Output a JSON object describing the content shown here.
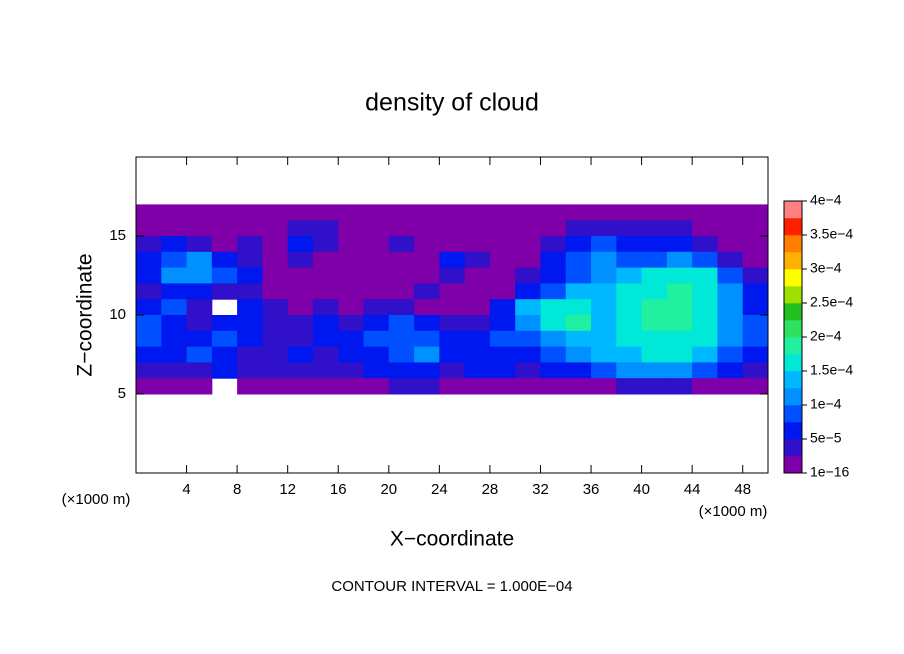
{
  "chart_data": {
    "type": "contour",
    "title": "density of cloud",
    "x_label": "X−coordinate",
    "y_label": "Z−coordinate",
    "x_unit": "(×1000 m)",
    "y_unit": "(×1000 m)",
    "footnote": "CONTOUR INTERVAL = 1.000E−04",
    "xlim": [
      0,
      50
    ],
    "ylim": [
      0,
      20
    ],
    "xticks": [
      4,
      8,
      12,
      16,
      20,
      24,
      28,
      32,
      36,
      40,
      44,
      48
    ],
    "yticks": [
      5,
      10,
      15
    ],
    "x": [
      1,
      3,
      5,
      7,
      9,
      11,
      13,
      15,
      17,
      19,
      21,
      23,
      25,
      27,
      29,
      31,
      33,
      35,
      37,
      39,
      41,
      43,
      45,
      47,
      49
    ],
    "z": [
      16.5,
      15.5,
      14.5,
      13.5,
      12.5,
      11.5,
      10.5,
      9.5,
      8.5,
      7.5,
      6.5,
      5.5
    ],
    "values": [
      [
        1e-05,
        1e-05,
        1e-05,
        1e-05,
        1e-05,
        1e-05,
        1e-05,
        1e-05,
        1e-05,
        1e-05,
        1e-05,
        1e-05,
        1e-05,
        1e-05,
        1e-05,
        1e-05,
        1e-05,
        1e-05,
        1e-05,
        1e-05,
        1e-05,
        1e-05,
        1e-05,
        1e-05,
        1e-05
      ],
      [
        1e-05,
        1e-05,
        1e-05,
        1e-05,
        1e-05,
        1e-05,
        3e-05,
        3e-05,
        1e-05,
        1e-05,
        1e-05,
        1e-05,
        1e-05,
        1e-05,
        1e-05,
        1e-05,
        1e-05,
        3e-05,
        3e-05,
        3e-05,
        3e-05,
        3e-05,
        1e-05,
        1e-05,
        1e-05
      ],
      [
        3e-05,
        6e-05,
        3e-05,
        1e-05,
        3e-05,
        1e-05,
        6e-05,
        3e-05,
        1e-05,
        1e-05,
        3e-05,
        1e-05,
        1e-05,
        1e-05,
        1e-05,
        1e-05,
        3e-05,
        6e-05,
        8e-05,
        6e-05,
        6e-05,
        6e-05,
        3e-05,
        1e-05,
        1e-05
      ],
      [
        6e-05,
        8e-05,
        0.00011,
        6e-05,
        3e-05,
        1e-05,
        3e-05,
        1e-05,
        1e-05,
        1e-05,
        1e-05,
        1e-05,
        6e-05,
        3e-05,
        1e-05,
        1e-05,
        6e-05,
        8e-05,
        0.00011,
        8e-05,
        8e-05,
        0.00011,
        8e-05,
        3e-05,
        1e-05
      ],
      [
        6e-05,
        0.00011,
        0.00011,
        8e-05,
        6e-05,
        1e-05,
        1e-05,
        1e-05,
        1e-05,
        1e-05,
        1e-05,
        1e-05,
        3e-05,
        1e-05,
        1e-05,
        3e-05,
        6e-05,
        8e-05,
        0.00011,
        0.00013,
        0.00016,
        0.00016,
        0.00016,
        8e-05,
        3e-05
      ],
      [
        3e-05,
        6e-05,
        6e-05,
        3e-05,
        3e-05,
        1e-05,
        1e-05,
        1e-05,
        1e-05,
        1e-05,
        1e-05,
        3e-05,
        1e-05,
        1e-05,
        1e-05,
        6e-05,
        8e-05,
        0.00013,
        0.00013,
        0.00016,
        0.00016,
        0.00018,
        0.00016,
        0.00011,
        6e-05
      ],
      [
        6e-05,
        8e-05,
        3e-05,
        null,
        6e-05,
        3e-05,
        1e-05,
        3e-05,
        1e-05,
        3e-05,
        3e-05,
        1e-05,
        1e-05,
        1e-05,
        6e-05,
        0.00013,
        0.00016,
        0.00016,
        0.00013,
        0.00016,
        0.00018,
        0.00018,
        0.00016,
        0.00011,
        6e-05
      ],
      [
        8e-05,
        6e-05,
        3e-05,
        6e-05,
        6e-05,
        3e-05,
        3e-05,
        6e-05,
        3e-05,
        6e-05,
        8e-05,
        6e-05,
        3e-05,
        3e-05,
        6e-05,
        0.00011,
        0.00016,
        0.00018,
        0.00013,
        0.00016,
        0.00018,
        0.00018,
        0.00016,
        0.00011,
        8e-05
      ],
      [
        8e-05,
        6e-05,
        6e-05,
        8e-05,
        6e-05,
        3e-05,
        3e-05,
        6e-05,
        6e-05,
        8e-05,
        8e-05,
        8e-05,
        6e-05,
        6e-05,
        8e-05,
        8e-05,
        0.00011,
        0.00013,
        0.00013,
        0.00016,
        0.00016,
        0.00016,
        0.00016,
        0.00011,
        8e-05
      ],
      [
        6e-05,
        6e-05,
        8e-05,
        6e-05,
        3e-05,
        3e-05,
        6e-05,
        3e-05,
        6e-05,
        6e-05,
        8e-05,
        0.00011,
        6e-05,
        6e-05,
        6e-05,
        6e-05,
        8e-05,
        0.00011,
        0.00013,
        0.00013,
        0.00016,
        0.00016,
        0.00013,
        8e-05,
        6e-05
      ],
      [
        3e-05,
        3e-05,
        3e-05,
        6e-05,
        3e-05,
        3e-05,
        3e-05,
        3e-05,
        3e-05,
        6e-05,
        6e-05,
        6e-05,
        3e-05,
        6e-05,
        6e-05,
        3e-05,
        6e-05,
        6e-05,
        8e-05,
        0.00011,
        0.00011,
        0.00011,
        8e-05,
        6e-05,
        3e-05
      ],
      [
        1e-05,
        1e-05,
        1e-05,
        null,
        1e-05,
        1e-05,
        1e-05,
        1e-05,
        1e-05,
        1e-05,
        3e-05,
        3e-05,
        1e-05,
        1e-05,
        1e-05,
        1e-05,
        1e-05,
        1e-05,
        1e-05,
        3e-05,
        3e-05,
        3e-05,
        1e-05,
        1e-05,
        1e-05
      ]
    ],
    "levels": [
      1e-16,
      2.5e-05,
      5e-05,
      7.5e-05,
      0.0001,
      0.000125,
      0.00015,
      0.000175,
      0.0002,
      0.000225,
      0.00025,
      0.000275,
      0.0003,
      0.000325,
      0.00035,
      0.000375,
      0.0004
    ],
    "colors": [
      "#7f00a8",
      "#3010c8",
      "#0018f0",
      "#0050ff",
      "#0090ff",
      "#00b8ff",
      "#00e8d8",
      "#20f0a0",
      "#30e060",
      "#20c020",
      "#a0e000",
      "#ffff00",
      "#ffb000",
      "#ff8000",
      "#ff2000",
      "#ff8080"
    ],
    "colorbar_ticks": [
      {
        "value": 1e-16,
        "label": "1e−16"
      },
      {
        "value": 5e-05,
        "label": "5e−5"
      },
      {
        "value": 0.0001,
        "label": "1e−4"
      },
      {
        "value": 0.00015,
        "label": "1.5e−4"
      },
      {
        "value": 0.0002,
        "label": "2e−4"
      },
      {
        "value": 0.00025,
        "label": "2.5e−4"
      },
      {
        "value": 0.0003,
        "label": "3e−4"
      },
      {
        "value": 0.00035,
        "label": "3.5e−4"
      },
      {
        "value": 0.0004,
        "label": "4e−4"
      }
    ]
  }
}
